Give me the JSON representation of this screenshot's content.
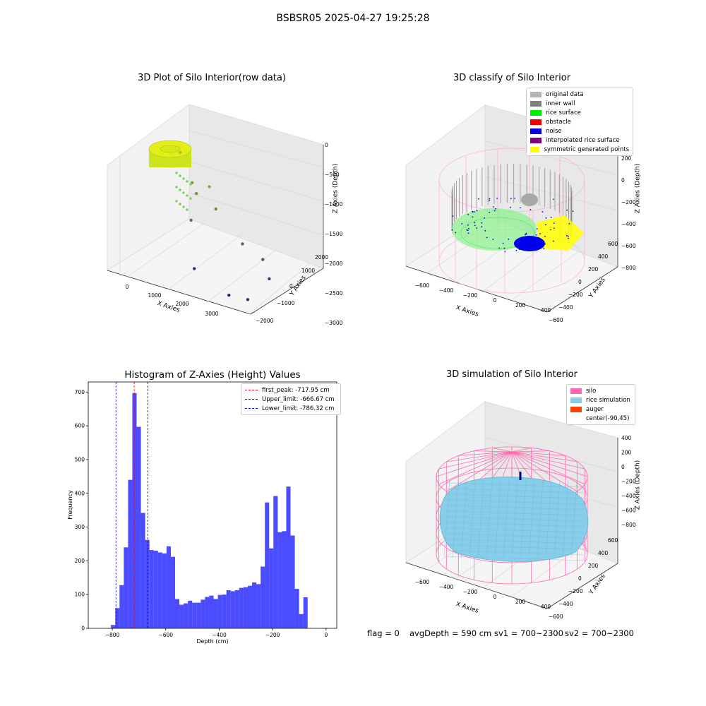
{
  "figure": {
    "title": "BSBSR05 2025-04-27 19:25:28"
  },
  "chart_data": [
    {
      "type": "scatter",
      "dimension": "3d",
      "title": "3D Plot of Silo Interior(row data)",
      "xlabel": "X Axies",
      "ylabel": "Y Axies",
      "zlabel": "Z Axies (Depth)",
      "x_ticks": [
        "0",
        "1000",
        "2000",
        "3000"
      ],
      "y_ticks": [
        "−2000",
        "−1000",
        "0",
        "1000",
        "2000"
      ],
      "z_ticks": [
        "0",
        "−500",
        "−1000",
        "−1500",
        "−2000",
        "−2500",
        "−3000"
      ],
      "points": [
        {
          "x": 150,
          "y": 1200,
          "z": -400
        },
        {
          "x": 600,
          "y": 900,
          "z": -1100
        },
        {
          "x": 800,
          "y": 700,
          "z": -1300
        },
        {
          "x": 1200,
          "y": 600,
          "z": -900
        },
        {
          "x": 1500,
          "y": 300,
          "z": -1400
        },
        {
          "x": 900,
          "y": 100,
          "z": -1900
        },
        {
          "x": 2400,
          "y": -100,
          "z": -2050
        },
        {
          "x": 3000,
          "y": -200,
          "z": -2300
        },
        {
          "x": 3300,
          "y": -500,
          "z": -2700
        },
        {
          "x": 1400,
          "y": -900,
          "z": -2900
        },
        {
          "x": 2600,
          "y": -1500,
          "z": -3100
        },
        {
          "x": 3200,
          "y": -1700,
          "z": -2950
        }
      ]
    },
    {
      "type": "scatter",
      "dimension": "3d",
      "title": "3D classify of Silo Interior",
      "xlabel": "X Axies",
      "ylabel": "Y Axies",
      "zlabel": "Z Axies (Depth)",
      "x_ticks": [
        "−600",
        "−400",
        "−200",
        "0",
        "200",
        "400"
      ],
      "y_ticks": [
        "−600",
        "−400",
        "−200",
        "0",
        "200",
        "400",
        "600"
      ],
      "z_ticks": [
        "200",
        "0",
        "−200",
        "−400",
        "−600",
        "−800"
      ],
      "legend": [
        {
          "label": "original data",
          "color": "#b3b3b3"
        },
        {
          "label": "inner wall",
          "color": "#808080"
        },
        {
          "label": "rice surface",
          "color": "#00ee00"
        },
        {
          "label": "obstacle",
          "color": "#ee0000"
        },
        {
          "label": "noise",
          "color": "#0000dd"
        },
        {
          "label": "interpolated rice surface",
          "color": "#800080"
        },
        {
          "label": "symmetric generated points",
          "color": "#ffff00"
        }
      ]
    },
    {
      "type": "bar",
      "title": "Histogram of Z-Axies (Height) Values",
      "xlabel": "Depth (cm)",
      "ylabel": "Frequency",
      "xlim": [
        -890,
        40
      ],
      "ylim": [
        0,
        730
      ],
      "x_ticks": [
        {
          "value": -800,
          "label": "−800"
        },
        {
          "value": -600,
          "label": "−600"
        },
        {
          "value": -400,
          "label": "−400"
        },
        {
          "value": -200,
          "label": "−200"
        },
        {
          "value": 0,
          "label": "0"
        }
      ],
      "y_ticks": [
        0,
        100,
        200,
        300,
        400,
        500,
        600,
        700
      ],
      "bin_start": -805,
      "bin_width": 16,
      "values": [
        10,
        60,
        128,
        240,
        440,
        697,
        597,
        342,
        262,
        232,
        230,
        225,
        222,
        243,
        212,
        87,
        70,
        74,
        82,
        76,
        76,
        85,
        93,
        97,
        87,
        99,
        100,
        113,
        110,
        113,
        120,
        122,
        126,
        136,
        131,
        183,
        373,
        237,
        392,
        285,
        288,
        420,
        275,
        117,
        42,
        92
      ],
      "bar_color": "#0000ff",
      "vlines": [
        {
          "label": "first_peak: -717.95 cm",
          "x": -717.95,
          "color": "#ff0000"
        },
        {
          "label": "Upper_limit: -666.67 cm",
          "x": -666.67,
          "color": "#000080"
        },
        {
          "label": "Lower_limit: -786.32 cm",
          "x": -786.32,
          "color": "#0000ff"
        }
      ]
    },
    {
      "type": "area",
      "dimension": "3d",
      "title": "3D simulation of Silo Interior",
      "xlabel": "X Axies",
      "ylabel": "Y Axies",
      "zlabel": "Z Axies (Depth)",
      "x_ticks": [
        "−600",
        "−400",
        "−200",
        "0",
        "200",
        "400"
      ],
      "y_ticks": [
        "−600",
        "−400",
        "−200",
        "0",
        "200",
        "400",
        "600"
      ],
      "z_ticks": [
        "400",
        "200",
        "0",
        "−200",
        "−400",
        "−600",
        "−800"
      ],
      "legend": [
        {
          "label": "silo",
          "color": "#ff69b4"
        },
        {
          "label": "rice simulation",
          "color": "#87ceeb"
        },
        {
          "label": "auger",
          "color": "#ff4500"
        },
        {
          "label": "center(-90,45)",
          "color": ""
        }
      ]
    }
  ],
  "footer": {
    "flag": "flag = 0",
    "avg_depth": "avgDepth = 590 cm",
    "sv1": "sv1 = 700~2300",
    "sv2": "sv2 = 700~2300"
  }
}
